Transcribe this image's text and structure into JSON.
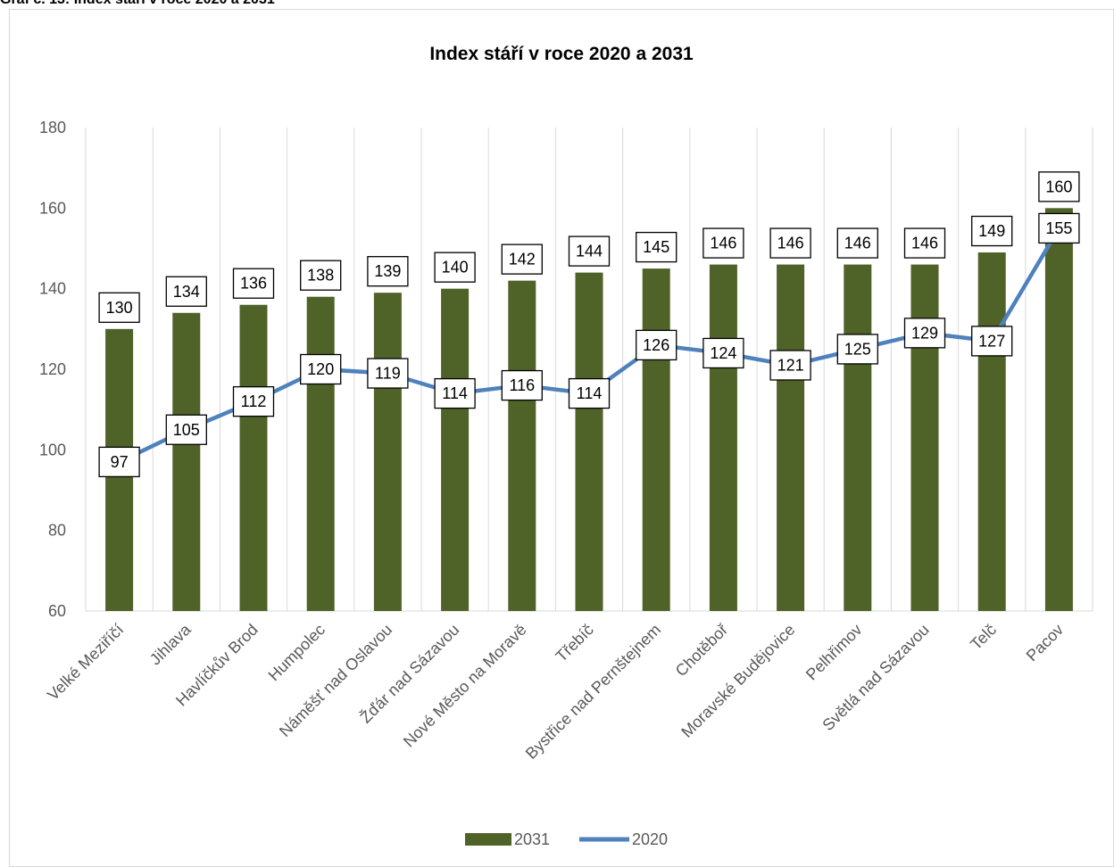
{
  "caption": "Graf č. 13: Index stáří v roce 2020 a 2031",
  "colors": {
    "bar": "#4f6228",
    "line": "#4f81bd",
    "grid": "#d9d9d9"
  },
  "chart_data": {
    "type": "bar",
    "title": "Index stáří v roce 2020 a 2031",
    "xlabel": "",
    "ylabel": "",
    "ylim": [
      60,
      180
    ],
    "yticks": [
      60,
      80,
      100,
      120,
      140,
      160,
      180
    ],
    "grid": "vertical",
    "legend_position": "bottom",
    "categories": [
      "Velké Meziříčí",
      "Jihlava",
      "Havlíčkův Brod",
      "Humpolec",
      "Náměšť nad Oslavou",
      "Žďár nad Sázavou",
      "Nové Město na Moravě",
      "Třebíč",
      "Bystřice nad Pernštejnem",
      "Chotěboř",
      "Moravské Budějovice",
      "Pelhřimov",
      "Světlá nad Sázavou",
      "Telč",
      "Pacov"
    ],
    "series": [
      {
        "name": "2031",
        "type": "bar",
        "values": [
          130,
          134,
          136,
          138,
          139,
          140,
          142,
          144,
          145,
          146,
          146,
          146,
          146,
          149,
          160
        ]
      },
      {
        "name": "2020",
        "type": "line",
        "values": [
          97,
          105,
          112,
          120,
          119,
          114,
          116,
          114,
          126,
          124,
          121,
          125,
          129,
          127,
          155
        ]
      }
    ]
  }
}
